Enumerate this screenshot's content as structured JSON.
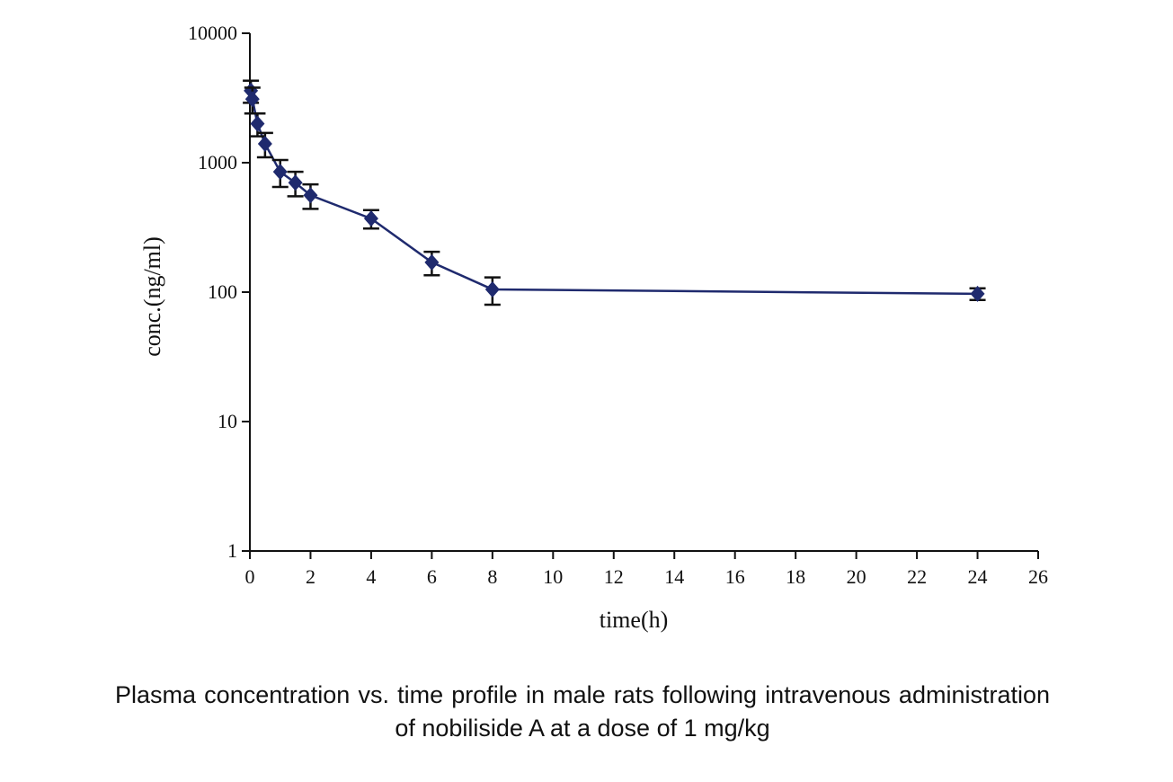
{
  "chart_data": {
    "type": "line",
    "x_label": "time(h)",
    "y_label": "conc.(ng/ml)",
    "yscale": "log",
    "grid": false,
    "xlim": [
      0,
      26
    ],
    "xticks": [
      0,
      2,
      4,
      6,
      8,
      10,
      12,
      14,
      16,
      18,
      20,
      22,
      24,
      26
    ],
    "ylim": [
      1,
      10000
    ],
    "yticks": [
      1,
      10,
      100,
      1000,
      10000
    ],
    "series": [
      {
        "color": "#1f2a6e",
        "x": [
          0.033,
          0.083,
          0.25,
          0.5,
          1,
          1.5,
          2,
          4,
          6,
          8,
          24
        ],
        "values": [
          3600,
          3100,
          2000,
          1400,
          850,
          700,
          560,
          370,
          170,
          105,
          97
        ],
        "errors": [
          700,
          700,
          400,
          300,
          200,
          150,
          120,
          60,
          35,
          25,
          10
        ]
      }
    ]
  },
  "caption": "Plasma concentration vs. time profile in male rats following intravenous administration of nobiliside A at a dose of 1 mg/kg"
}
